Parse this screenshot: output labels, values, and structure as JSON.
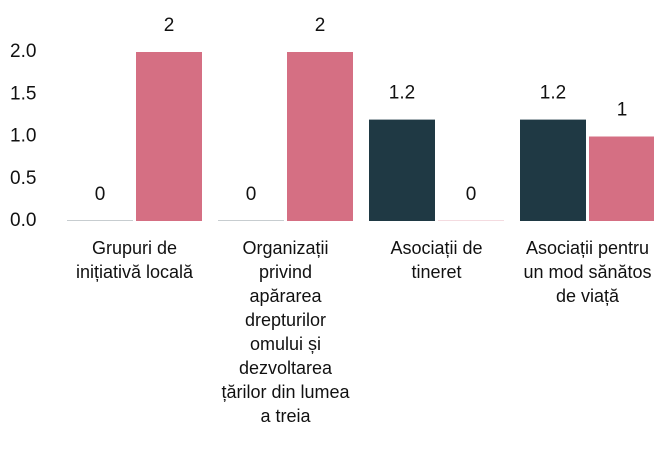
{
  "chart_data": {
    "type": "bar",
    "categories": [
      "Grupuri de inițiativă locală",
      "Organizații privind apărarea drepturilor omului și dezvoltarea țărilor din lumea a treia",
      "Asociații de tineret",
      "Asociații pentru un mod sănătos de viață"
    ],
    "series": [
      {
        "color": "#1f3944",
        "values": [
          0,
          0,
          1.2,
          1.2
        ]
      },
      {
        "color": "#d56f83",
        "values": [
          2,
          2,
          0,
          1
        ]
      }
    ],
    "ylim": [
      0,
      2
    ],
    "yticks": [
      {
        "value": 0,
        "label": "0.0"
      },
      0.5,
      {
        "value": 1,
        "label": "1.0"
      },
      1.5,
      {
        "value": 2,
        "label": "2.0"
      }
    ],
    "grid": false
  }
}
